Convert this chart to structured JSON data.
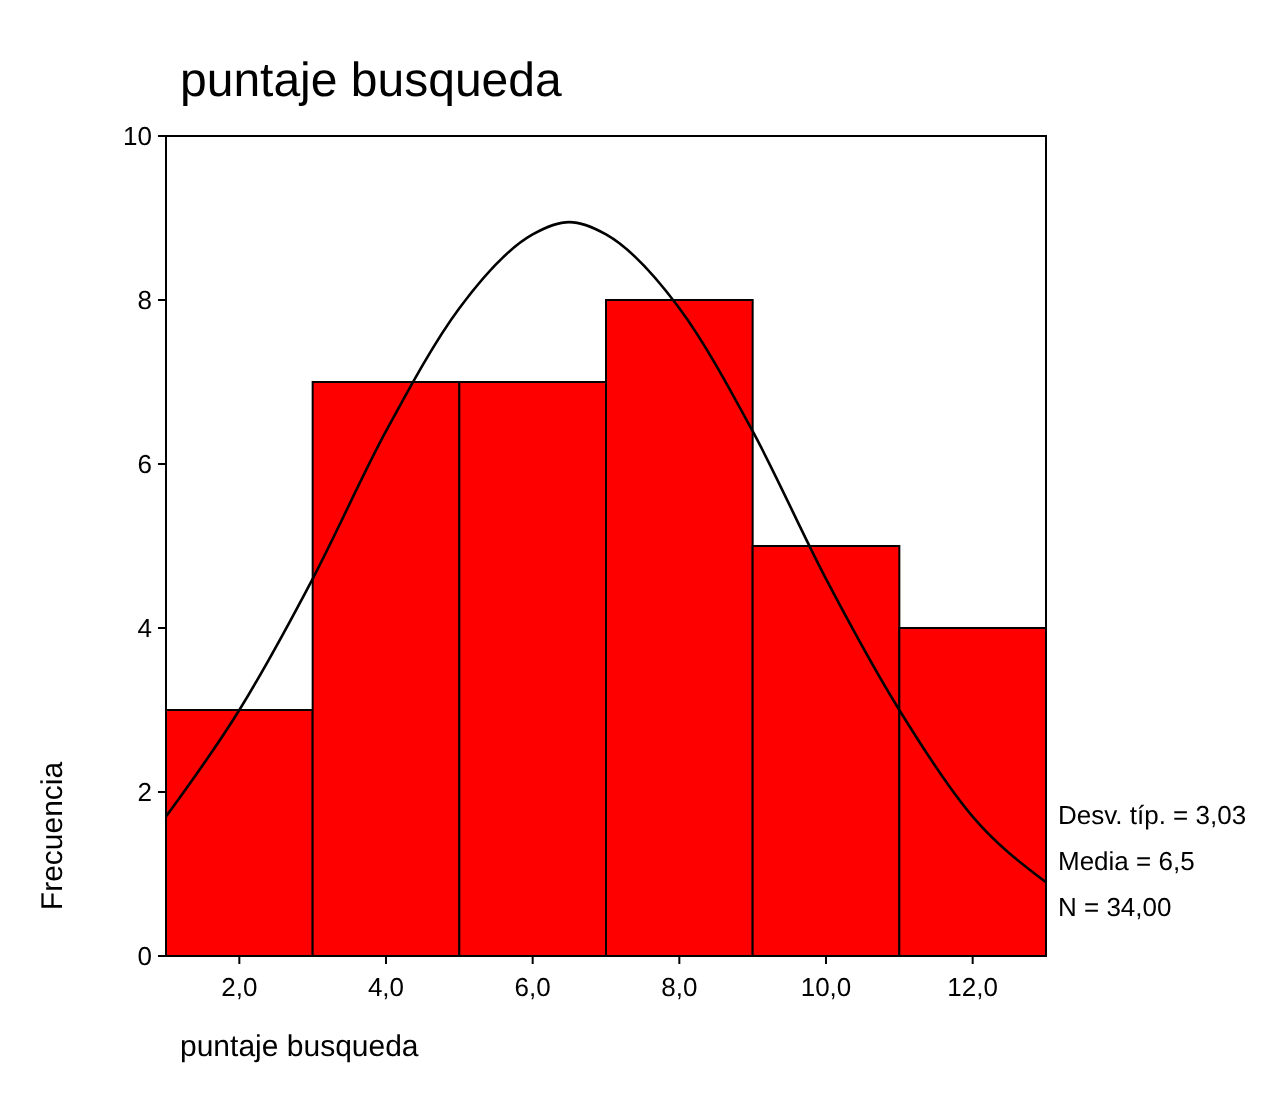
{
  "chart_data": {
    "type": "histogram",
    "title": "puntaje busqueda",
    "xlabel": "puntaje busqueda",
    "ylabel": "Frecuencia",
    "bins": [
      1,
      3,
      5,
      7,
      9,
      11,
      13
    ],
    "values": [
      3,
      7,
      7,
      8,
      5,
      4
    ],
    "color": "#ff0000",
    "series": [
      {
        "type": "line",
        "color": "#000000",
        "x": [
          1,
          2,
          3,
          4,
          5,
          6,
          6.5,
          7,
          8,
          9,
          10,
          11,
          12,
          13
        ],
        "values": [
          1.7,
          3.0,
          4.6,
          6.4,
          7.9,
          8.8,
          8.95,
          8.8,
          7.9,
          6.4,
          4.6,
          3.0,
          1.7,
          0.9
        ]
      }
    ],
    "xlim": [
      1,
      13
    ],
    "xticks": [
      {
        "value": 2,
        "label": "2,0"
      },
      {
        "value": 4,
        "label": "4,0"
      },
      {
        "value": 6,
        "label": "6,0"
      },
      {
        "value": 8,
        "label": "8,0"
      },
      {
        "value": 10,
        "label": "10,0"
      },
      {
        "value": 12,
        "label": "12,0"
      }
    ],
    "ylim": [
      0,
      10
    ],
    "yticks": [
      0,
      2,
      4,
      6,
      8,
      10
    ],
    "annotations": [
      "Desv. típ. = 3,03",
      "Media = 6,5",
      "N = 34,00"
    ]
  }
}
